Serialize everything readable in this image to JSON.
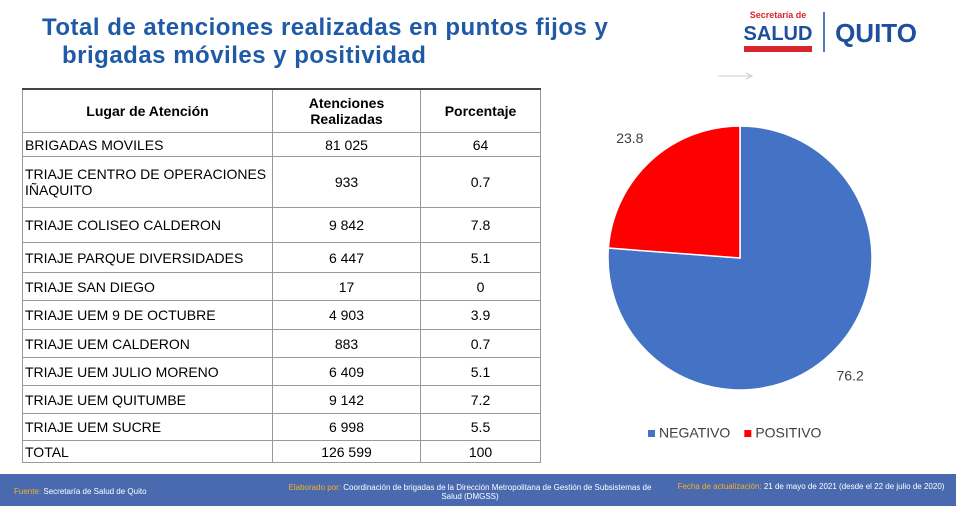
{
  "title_lines": [
    "Total de atenciones realizadas en puntos fijos y",
    "brigadas móviles y positividad"
  ],
  "logo": {
    "secretaria": "Secretaría de",
    "salud": "SALUD",
    "quito": "QUITO"
  },
  "table": {
    "header": [
      "Lugar de Atención",
      "Atenciones Realizadas",
      "Porcentaje"
    ],
    "rows": [
      [
        "BRIGADAS MOVILES",
        "81 025",
        "64"
      ],
      [
        "TRIAJE CENTRO DE OPERACIONES IÑAQUITO",
        "933",
        "0.7"
      ],
      [
        "TRIAJE COLISEO CALDERON",
        "9 842",
        "7.8"
      ],
      [
        "TRIAJE PARQUE DIVERSIDADES",
        "6 447",
        "5.1"
      ],
      [
        "TRIAJE SAN DIEGO",
        "17",
        "0"
      ],
      [
        "TRIAJE UEM 9 DE OCTUBRE",
        "4 903",
        "3.9"
      ],
      [
        "TRIAJE UEM CALDERON",
        "883",
        "0.7"
      ],
      [
        "TRIAJE UEM JULIO MORENO",
        "6 409",
        "5.1"
      ],
      [
        "TRIAJE UEM QUITUMBE",
        "9 142",
        "7.2"
      ],
      [
        "TRIAJE UEM SUCRE",
        "6 998",
        "5.5"
      ],
      [
        "TOTAL",
        "126 599",
        "100"
      ]
    ]
  },
  "chart_data": {
    "type": "pie",
    "categories": [
      "NEGATIVO",
      "POSITIVO"
    ],
    "values": [
      76.2,
      23.8
    ],
    "colors": [
      "#4472c4",
      "#ff0000"
    ],
    "legend": "bottom"
  },
  "footer": {
    "source_label": "Fuente:",
    "source": "Secretaría de Salud de Quito",
    "prepared_label": "Elaborado por:",
    "prepared": "Coordinación de brigadas de la Dirección Metropolitana de Gestión de Subsistemas de Salud (DMGSS)",
    "updated_label": "Fecha de actualización:",
    "updated": "21 de mayo de 2021 (desde el 22 de julio de 2020)"
  }
}
